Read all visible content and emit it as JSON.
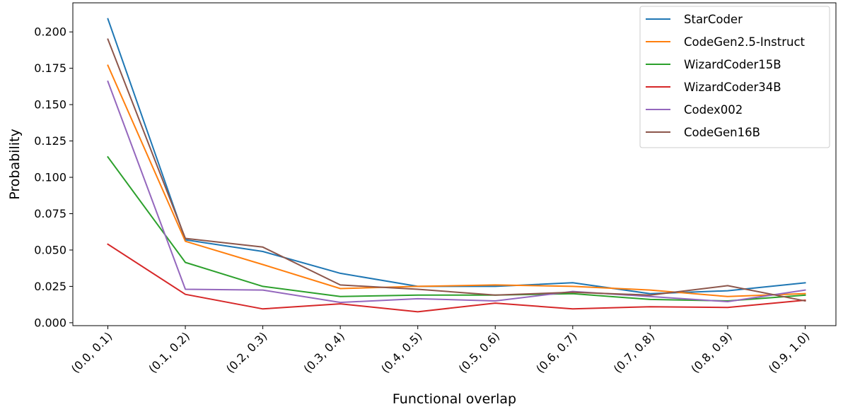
{
  "chart_data": {
    "type": "line",
    "title": "",
    "xlabel": "Functional overlap",
    "ylabel": "Probability",
    "categories": [
      "(0.0, 0.1)",
      "(0.1, 0.2)",
      "(0.2, 0.3)",
      "(0.3, 0.4)",
      "(0.4, 0.5)",
      "(0.5, 0.6)",
      "(0.6, 0.7)",
      "(0.7, 0.8)",
      "(0.8, 0.9)",
      "(0.9, 1.0)"
    ],
    "ylim": [
      -0.002,
      0.22
    ],
    "yticks": [
      0.0,
      0.025,
      0.05,
      0.075,
      0.1,
      0.125,
      0.15,
      0.175,
      0.2
    ],
    "ytick_labels": [
      "0.000",
      "0.025",
      "0.050",
      "0.075",
      "0.100",
      "0.125",
      "0.150",
      "0.175",
      "0.200"
    ],
    "grid": false,
    "legend_position": "top-right",
    "series": [
      {
        "name": "StarCoder",
        "color": "#1f77b4",
        "values": [
          0.209,
          0.057,
          0.049,
          0.034,
          0.025,
          0.025,
          0.0275,
          0.02,
          0.022,
          0.0275
        ]
      },
      {
        "name": "CodeGen2.5-Instruct",
        "color": "#ff7f0e",
        "values": [
          0.177,
          0.056,
          0.04,
          0.0235,
          0.025,
          0.026,
          0.025,
          0.0225,
          0.018,
          0.02
        ]
      },
      {
        "name": "WizardCoder15B",
        "color": "#2ca02c",
        "values": [
          0.114,
          0.0415,
          0.025,
          0.018,
          0.019,
          0.019,
          0.02,
          0.016,
          0.015,
          0.019
        ]
      },
      {
        "name": "WizardCoder34B",
        "color": "#d62728",
        "values": [
          0.054,
          0.0195,
          0.0095,
          0.013,
          0.0075,
          0.0135,
          0.0095,
          0.011,
          0.0105,
          0.0155
        ]
      },
      {
        "name": "Codex002",
        "color": "#9467bd",
        "values": [
          0.166,
          0.023,
          0.0225,
          0.014,
          0.0165,
          0.015,
          0.0215,
          0.018,
          0.0145,
          0.0225
        ]
      },
      {
        "name": "CodeGen16B",
        "color": "#8c564b",
        "values": [
          0.195,
          0.058,
          0.052,
          0.026,
          0.023,
          0.019,
          0.021,
          0.019,
          0.0255,
          0.015
        ]
      }
    ]
  }
}
